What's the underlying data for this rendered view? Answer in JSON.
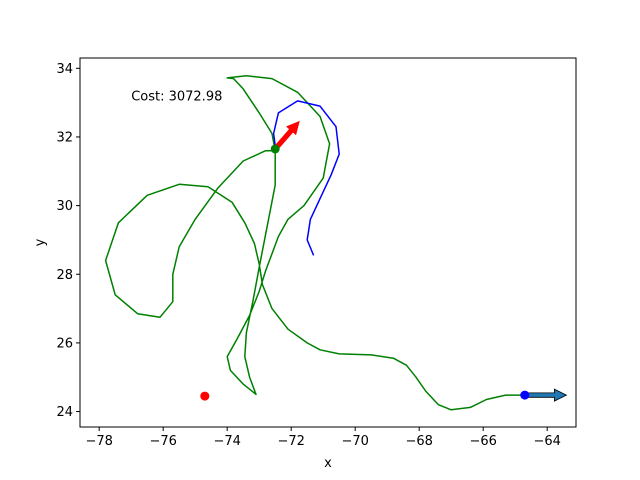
{
  "chart_data": {
    "type": "line",
    "title": "",
    "xlabel": "x",
    "ylabel": "y",
    "xlim": [
      -78.6,
      -63.1
    ],
    "ylim": [
      23.55,
      34.3
    ],
    "xticks": [
      -78,
      -76,
      -74,
      -72,
      -70,
      -68,
      -66,
      -64
    ],
    "yticks": [
      24,
      26,
      28,
      30,
      32,
      34
    ],
    "grid": false,
    "annotation": {
      "text": "Cost: 3072.98",
      "x": -77.0,
      "y": 33.2
    },
    "series": [
      {
        "role": "planned-path",
        "color": "#008000",
        "points": [
          [
            -64.7,
            24.48
          ],
          [
            -65.3,
            24.48
          ],
          [
            -65.9,
            24.35
          ],
          [
            -66.4,
            24.12
          ],
          [
            -67.0,
            24.05
          ],
          [
            -67.4,
            24.2
          ],
          [
            -67.8,
            24.6
          ],
          [
            -68.1,
            25.0
          ],
          [
            -68.4,
            25.35
          ],
          [
            -68.8,
            25.55
          ],
          [
            -69.5,
            25.65
          ],
          [
            -70.5,
            25.68
          ],
          [
            -71.1,
            25.8
          ],
          [
            -71.5,
            26.0
          ],
          [
            -72.1,
            26.4
          ],
          [
            -72.6,
            27.0
          ],
          [
            -72.9,
            27.7
          ],
          [
            -73.0,
            28.3
          ],
          [
            -73.15,
            28.9
          ],
          [
            -73.45,
            29.5
          ],
          [
            -73.85,
            30.1
          ],
          [
            -74.6,
            30.55
          ],
          [
            -75.5,
            30.62
          ],
          [
            -76.5,
            30.3
          ],
          [
            -77.4,
            29.5
          ],
          [
            -77.8,
            28.4
          ],
          [
            -77.5,
            27.4
          ],
          [
            -76.8,
            26.85
          ],
          [
            -76.1,
            26.75
          ],
          [
            -75.7,
            27.2
          ],
          [
            -75.7,
            28.0
          ],
          [
            -75.5,
            28.8
          ],
          [
            -75.0,
            29.6
          ],
          [
            -74.3,
            30.5
          ],
          [
            -73.5,
            31.3
          ],
          [
            -72.8,
            31.6
          ],
          [
            -72.5,
            31.6
          ],
          [
            -72.6,
            32.1
          ],
          [
            -73.0,
            32.7
          ],
          [
            -73.5,
            33.4
          ],
          [
            -73.8,
            33.7
          ],
          [
            -74.0,
            33.72
          ],
          [
            -73.4,
            33.78
          ],
          [
            -72.6,
            33.7
          ],
          [
            -71.8,
            33.3
          ],
          [
            -71.1,
            32.6
          ],
          [
            -70.8,
            31.8
          ],
          [
            -71.0,
            30.8
          ],
          [
            -71.6,
            30.0
          ],
          [
            -72.1,
            29.6
          ],
          [
            -72.4,
            29.1
          ],
          [
            -72.6,
            28.6
          ],
          [
            -72.8,
            28.1
          ],
          [
            -73.0,
            27.5
          ],
          [
            -73.3,
            26.8
          ],
          [
            -73.7,
            26.1
          ],
          [
            -74.0,
            25.6
          ],
          [
            -73.9,
            25.2
          ],
          [
            -73.5,
            24.8
          ],
          [
            -73.1,
            24.5
          ],
          [
            -73.3,
            25.0
          ],
          [
            -73.45,
            25.6
          ],
          [
            -73.4,
            26.3
          ],
          [
            -73.2,
            27.2
          ],
          [
            -73.0,
            28.2
          ],
          [
            -72.75,
            29.4
          ],
          [
            -72.5,
            30.6
          ],
          [
            -72.5,
            31.2
          ],
          [
            -72.5,
            31.6
          ]
        ]
      },
      {
        "role": "local-path",
        "color": "#0000ff",
        "points": [
          [
            -71.3,
            28.55
          ],
          [
            -71.5,
            29.0
          ],
          [
            -71.4,
            29.6
          ],
          [
            -71.1,
            30.2
          ],
          [
            -70.75,
            30.9
          ],
          [
            -70.5,
            31.5
          ],
          [
            -70.6,
            32.3
          ],
          [
            -71.1,
            32.9
          ],
          [
            -71.8,
            33.05
          ],
          [
            -72.4,
            32.7
          ],
          [
            -72.55,
            32.1
          ],
          [
            -72.5,
            31.75
          ]
        ]
      }
    ],
    "markers": [
      {
        "role": "start",
        "x": -64.7,
        "y": 24.48,
        "color": "#0000ff"
      },
      {
        "role": "goal",
        "x": -74.7,
        "y": 24.45,
        "color": "#ff0000"
      },
      {
        "role": "current",
        "x": -72.5,
        "y": 31.65,
        "color": "#008000"
      }
    ],
    "arrows": [
      {
        "role": "start-heading",
        "x": -64.7,
        "y": 24.48,
        "dx": 1.3,
        "dy": 0.0,
        "color": "#1f77b4"
      },
      {
        "role": "current-heading",
        "x": -72.5,
        "y": 31.65,
        "dx": 0.75,
        "dy": 0.8,
        "color": "#ff0000"
      }
    ]
  }
}
